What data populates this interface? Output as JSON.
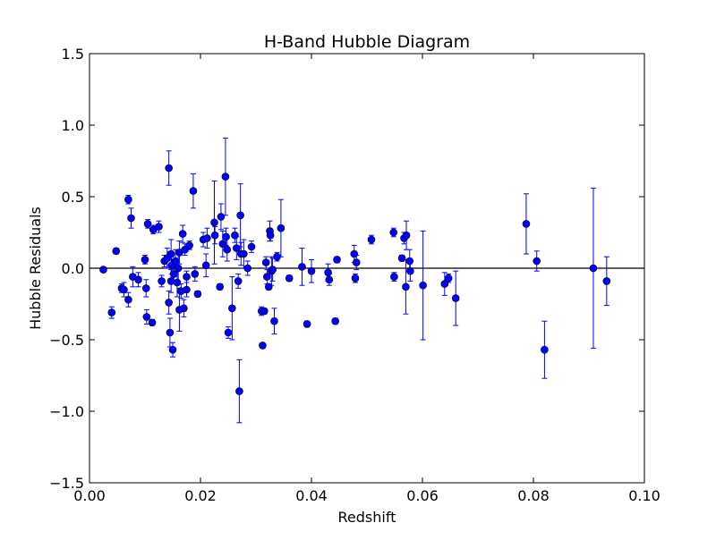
{
  "chart_data": {
    "type": "scatter",
    "title": "H-Band Hubble Diagram",
    "xlabel": "Redshift",
    "ylabel": "Hubble Residuals",
    "xlim": [
      0.0,
      0.1
    ],
    "ylim": [
      -1.5,
      1.5
    ],
    "x_ticks": [
      0.0,
      0.02,
      0.04,
      0.06,
      0.08,
      0.1
    ],
    "x_tick_labels": [
      "0.00",
      "0.02",
      "0.04",
      "0.06",
      "0.08",
      "0.10"
    ],
    "y_ticks": [
      -1.5,
      -1.0,
      -0.5,
      0.0,
      0.5,
      1.0,
      1.5
    ],
    "y_tick_labels": [
      "−1.5",
      "−1.0",
      "−0.5",
      "0.0",
      "0.5",
      "1.0",
      "1.5"
    ],
    "reference_line_y": 0.0,
    "grid": false,
    "marker_color": "#0000ff",
    "points": [
      {
        "x": 0.0025,
        "y": -0.01,
        "err": 0.01
      },
      {
        "x": 0.004,
        "y": -0.31,
        "err": 0.04
      },
      {
        "x": 0.0048,
        "y": 0.12,
        "err": 0.02
      },
      {
        "x": 0.0058,
        "y": -0.14,
        "err": 0.03
      },
      {
        "x": 0.0062,
        "y": -0.15,
        "err": 0.05
      },
      {
        "x": 0.007,
        "y": 0.48,
        "err": 0.03
      },
      {
        "x": 0.007,
        "y": -0.22,
        "err": 0.05
      },
      {
        "x": 0.0075,
        "y": 0.35,
        "err": 0.07
      },
      {
        "x": 0.0078,
        "y": -0.06,
        "err": 0.07
      },
      {
        "x": 0.0088,
        "y": -0.08,
        "err": 0.05
      },
      {
        "x": 0.01,
        "y": 0.06,
        "err": 0.03
      },
      {
        "x": 0.0102,
        "y": -0.14,
        "err": 0.06
      },
      {
        "x": 0.0103,
        "y": -0.34,
        "err": 0.05
      },
      {
        "x": 0.0105,
        "y": 0.31,
        "err": 0.03
      },
      {
        "x": 0.0113,
        "y": -0.38,
        "err": 0.02
      },
      {
        "x": 0.0115,
        "y": 0.27,
        "err": 0.03
      },
      {
        "x": 0.0125,
        "y": 0.29,
        "err": 0.04
      },
      {
        "x": 0.013,
        "y": -0.09,
        "err": 0.04
      },
      {
        "x": 0.0135,
        "y": 0.05,
        "err": 0.04
      },
      {
        "x": 0.014,
        "y": 0.07,
        "err": 0.07
      },
      {
        "x": 0.0143,
        "y": 0.7,
        "err": 0.12
      },
      {
        "x": 0.0143,
        "y": -0.24,
        "err": 0.08
      },
      {
        "x": 0.0145,
        "y": -0.45,
        "err": 0.1
      },
      {
        "x": 0.0147,
        "y": -0.09,
        "err": 0.08
      },
      {
        "x": 0.0147,
        "y": 0.1,
        "err": 0.1
      },
      {
        "x": 0.0148,
        "y": 0.02,
        "err": 0.06
      },
      {
        "x": 0.015,
        "y": -0.57,
        "err": 0.05
      },
      {
        "x": 0.0152,
        "y": -0.04,
        "err": 0.06
      },
      {
        "x": 0.0155,
        "y": 0.05,
        "err": 0.08
      },
      {
        "x": 0.0158,
        "y": -0.1,
        "err": 0.1
      },
      {
        "x": 0.016,
        "y": 0.0,
        "err": 0.1
      },
      {
        "x": 0.0162,
        "y": -0.29,
        "err": 0.15
      },
      {
        "x": 0.0162,
        "y": 0.11,
        "err": 0.08
      },
      {
        "x": 0.0165,
        "y": -0.16,
        "err": 0.05
      },
      {
        "x": 0.0168,
        "y": 0.24,
        "err": 0.06
      },
      {
        "x": 0.017,
        "y": -0.28,
        "err": 0.06
      },
      {
        "x": 0.0172,
        "y": 0.13,
        "err": 0.04
      },
      {
        "x": 0.0175,
        "y": -0.15,
        "err": 0.05
      },
      {
        "x": 0.0175,
        "y": -0.06,
        "err": 0.04
      },
      {
        "x": 0.018,
        "y": 0.16,
        "err": 0.03
      },
      {
        "x": 0.0187,
        "y": 0.54,
        "err": 0.12
      },
      {
        "x": 0.019,
        "y": -0.04,
        "err": 0.05
      },
      {
        "x": 0.0195,
        "y": -0.18,
        "err": 0.02
      },
      {
        "x": 0.0205,
        "y": 0.2,
        "err": 0.05
      },
      {
        "x": 0.021,
        "y": 0.02,
        "err": 0.08
      },
      {
        "x": 0.0212,
        "y": 0.21,
        "err": 0.07
      },
      {
        "x": 0.0225,
        "y": 0.32,
        "err": 0.29
      },
      {
        "x": 0.0226,
        "y": 0.23,
        "err": 0.06
      },
      {
        "x": 0.0235,
        "y": -0.13,
        "err": 0.02
      },
      {
        "x": 0.0237,
        "y": 0.36,
        "err": 0.09
      },
      {
        "x": 0.024,
        "y": 0.17,
        "err": 0.09
      },
      {
        "x": 0.0245,
        "y": 0.64,
        "err": 0.27
      },
      {
        "x": 0.0246,
        "y": 0.22,
        "err": 0.06
      },
      {
        "x": 0.0248,
        "y": 0.13,
        "err": 0.08
      },
      {
        "x": 0.025,
        "y": -0.45,
        "err": 0.04
      },
      {
        "x": 0.0257,
        "y": -0.28,
        "err": 0.22
      },
      {
        "x": 0.0262,
        "y": 0.23,
        "err": 0.05
      },
      {
        "x": 0.0265,
        "y": 0.14,
        "err": 0.08
      },
      {
        "x": 0.0268,
        "y": -0.09,
        "err": 0.05
      },
      {
        "x": 0.027,
        "y": -0.86,
        "err": 0.22
      },
      {
        "x": 0.0272,
        "y": 0.37,
        "err": 0.22
      },
      {
        "x": 0.0273,
        "y": 0.1,
        "err": 0.08
      },
      {
        "x": 0.0278,
        "y": 0.1,
        "err": 0.1
      },
      {
        "x": 0.0285,
        "y": 0.0,
        "err": 0.05
      },
      {
        "x": 0.0292,
        "y": 0.15,
        "err": 0.04
      },
      {
        "x": 0.031,
        "y": -0.3,
        "err": 0.03
      },
      {
        "x": 0.0312,
        "y": -0.54,
        "err": 0.01
      },
      {
        "x": 0.0315,
        "y": -0.3,
        "err": 0.02
      },
      {
        "x": 0.0318,
        "y": 0.04,
        "err": 0.04
      },
      {
        "x": 0.032,
        "y": -0.06,
        "err": 0.05
      },
      {
        "x": 0.0323,
        "y": -0.13,
        "err": 0.02
      },
      {
        "x": 0.0325,
        "y": 0.26,
        "err": 0.07
      },
      {
        "x": 0.0326,
        "y": 0.23,
        "err": 0.04
      },
      {
        "x": 0.0328,
        "y": -0.02,
        "err": 0.1
      },
      {
        "x": 0.033,
        "y": -0.01,
        "err": 0.08
      },
      {
        "x": 0.0333,
        "y": -0.37,
        "err": 0.09
      },
      {
        "x": 0.0338,
        "y": 0.08,
        "err": 0.03
      },
      {
        "x": 0.0345,
        "y": 0.28,
        "err": 0.2
      },
      {
        "x": 0.036,
        "y": -0.07,
        "err": 0.02
      },
      {
        "x": 0.0383,
        "y": 0.01,
        "err": 0.13
      },
      {
        "x": 0.0392,
        "y": -0.39,
        "err": 0.02
      },
      {
        "x": 0.04,
        "y": -0.02,
        "err": 0.08
      },
      {
        "x": 0.043,
        "y": -0.03,
        "err": 0.06
      },
      {
        "x": 0.0432,
        "y": -0.08,
        "err": 0.04
      },
      {
        "x": 0.0443,
        "y": -0.37,
        "err": 0.02
      },
      {
        "x": 0.0446,
        "y": 0.06,
        "err": 0.02
      },
      {
        "x": 0.0477,
        "y": 0.1,
        "err": 0.06
      },
      {
        "x": 0.0479,
        "y": -0.07,
        "err": 0.03
      },
      {
        "x": 0.0481,
        "y": 0.04,
        "err": 0.05
      },
      {
        "x": 0.0508,
        "y": 0.2,
        "err": 0.03
      },
      {
        "x": 0.0548,
        "y": 0.25,
        "err": 0.03
      },
      {
        "x": 0.0549,
        "y": -0.06,
        "err": 0.03
      },
      {
        "x": 0.0563,
        "y": 0.07,
        "err": 0.02
      },
      {
        "x": 0.0567,
        "y": 0.21,
        "err": 0.04
      },
      {
        "x": 0.057,
        "y": -0.13,
        "err": 0.19
      },
      {
        "x": 0.0571,
        "y": 0.23,
        "err": 0.1
      },
      {
        "x": 0.0577,
        "y": 0.05,
        "err": 0.08
      },
      {
        "x": 0.0578,
        "y": -0.02,
        "err": 0.07
      },
      {
        "x": 0.0601,
        "y": -0.12,
        "err": 0.38
      },
      {
        "x": 0.064,
        "y": -0.11,
        "err": 0.08
      },
      {
        "x": 0.0647,
        "y": -0.07,
        "err": 0.03
      },
      {
        "x": 0.066,
        "y": -0.21,
        "err": 0.19
      },
      {
        "x": 0.0787,
        "y": 0.31,
        "err": 0.21
      },
      {
        "x": 0.0806,
        "y": 0.05,
        "err": 0.07
      },
      {
        "x": 0.082,
        "y": -0.57,
        "err": 0.2
      },
      {
        "x": 0.0908,
        "y": 0.0,
        "err": 0.56
      },
      {
        "x": 0.0932,
        "y": -0.09,
        "err": 0.17
      }
    ]
  }
}
